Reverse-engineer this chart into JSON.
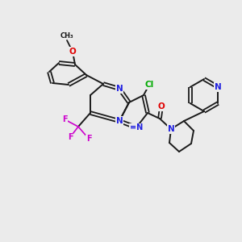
{
  "background_color": "#ebebeb",
  "bond_color": "#1a1a1a",
  "atom_colors": {
    "N": "#2020e0",
    "O": "#e00000",
    "F": "#cc00cc",
    "Cl": "#00aa00"
  },
  "figsize": [
    3.0,
    3.0
  ],
  "dpi": 100
}
